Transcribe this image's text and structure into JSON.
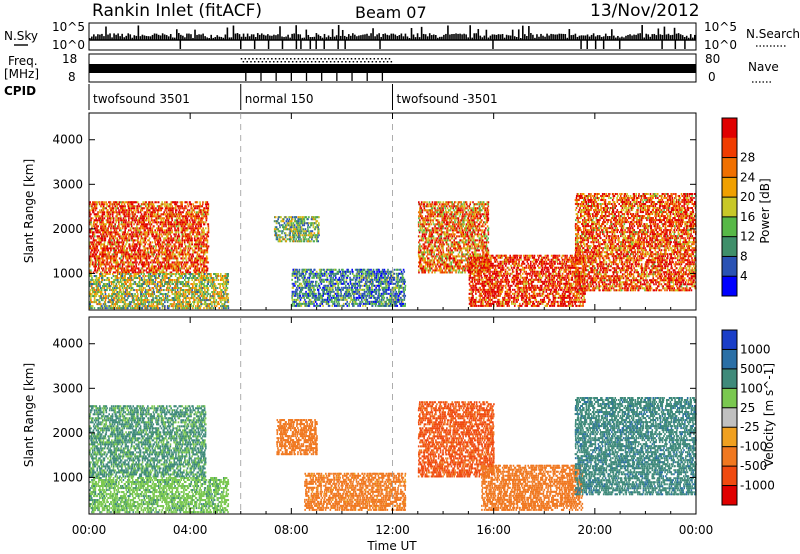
{
  "header": {
    "station": "Rankin Inlet (fitACF)",
    "beam": "Beam 07",
    "date": "13/Nov/2012"
  },
  "noise_panel": {
    "left_label": "N.Sky",
    "right_label": "N.Search",
    "left_top_tick": "10^5",
    "left_bottom_tick": "10^0",
    "right_top_tick": "10^5",
    "right_bottom_tick": "10^0"
  },
  "freq_panel": {
    "left_label_1": "Freq.",
    "left_label_2": "[MHz]",
    "left_tick_top": "18",
    "left_tick_bottom": "8",
    "right_label": "Nave",
    "right_tick_top": "80",
    "right_tick_bottom": "0"
  },
  "cpid": {
    "label": "CPID",
    "segments": [
      {
        "name": "twofsound 3501",
        "start_hour": 0
      },
      {
        "name": "normal 150",
        "start_hour": 6
      },
      {
        "name": "twofsound -3501",
        "start_hour": 12
      }
    ]
  },
  "colors": {
    "power_scale": [
      "#0000ff",
      "#2a52b4",
      "#3f8f6a",
      "#57b847",
      "#c8c828",
      "#f0a000",
      "#f07000",
      "#f03c00",
      "#e00000"
    ],
    "velocity_scale": [
      "#1a3ec8",
      "#2a6fa6",
      "#3f8a7a",
      "#7ac850",
      "#c0c0c0",
      "#f0a020",
      "#f07820",
      "#f04a10",
      "#e00000"
    ]
  },
  "chart_data": [
    {
      "type": "heatmap",
      "name": "power",
      "title": "",
      "ylabel": "Slant Range [km]",
      "xlabel": "",
      "xlim": [
        "00:00",
        "24:00"
      ],
      "ylim": [
        180,
        4600
      ],
      "x_ticks": [
        "00:00",
        "04:00",
        "08:00",
        "12:00",
        "16:00",
        "20:00",
        "00:00"
      ],
      "y_ticks": [
        1000,
        2000,
        3000,
        4000
      ],
      "colorbar": {
        "label": "Power [dB]",
        "ticks": [
          4,
          8,
          12,
          16,
          20,
          24,
          28
        ],
        "range": [
          0,
          30
        ]
      },
      "regions": [
        {
          "t": [
            0.0,
            4.7
          ],
          "r": [
            1000,
            2600
          ],
          "level": 26
        },
        {
          "t": [
            0.0,
            5.5
          ],
          "r": [
            200,
            1000
          ],
          "level": 14
        },
        {
          "t": [
            7.3,
            9.1
          ],
          "r": [
            1700,
            2300
          ],
          "level": 12
        },
        {
          "t": [
            8.0,
            12.5
          ],
          "r": [
            250,
            1100
          ],
          "level": 8
        },
        {
          "t": [
            13.0,
            15.8
          ],
          "r": [
            1000,
            2600
          ],
          "level": 22
        },
        {
          "t": [
            15.0,
            19.6
          ],
          "r": [
            250,
            1400
          ],
          "level": 28
        },
        {
          "t": [
            19.2,
            24.0
          ],
          "r": [
            600,
            2800
          ],
          "level": 25
        }
      ]
    },
    {
      "type": "heatmap",
      "name": "velocity",
      "title": "",
      "ylabel": "Slant Range [km]",
      "xlabel": "Time UT",
      "xlim": [
        "00:00",
        "24:00"
      ],
      "ylim": [
        180,
        4600
      ],
      "x_ticks": [
        "00:00",
        "04:00",
        "08:00",
        "12:00",
        "16:00",
        "20:00",
        "00:00"
      ],
      "y_ticks": [
        1000,
        2000,
        3000,
        4000
      ],
      "colorbar": {
        "label": "Velocity [m s^-1]",
        "ticks": [
          1000,
          500,
          100,
          25,
          -25,
          -100,
          -500,
          -1000
        ]
      },
      "regions": [
        {
          "t": [
            0.0,
            4.6
          ],
          "r": [
            1000,
            2600
          ],
          "level": 120
        },
        {
          "t": [
            0.0,
            5.5
          ],
          "r": [
            200,
            1000
          ],
          "level": 80
        },
        {
          "t": [
            7.4,
            9.0
          ],
          "r": [
            1500,
            2300
          ],
          "level": -250
        },
        {
          "t": [
            8.5,
            12.5
          ],
          "r": [
            250,
            1100
          ],
          "level": -150
        },
        {
          "t": [
            13.0,
            16.0
          ],
          "r": [
            1000,
            2700
          ],
          "level": -600
        },
        {
          "t": [
            15.5,
            19.5
          ],
          "r": [
            250,
            1300
          ],
          "level": -300
        },
        {
          "t": [
            19.2,
            24.0
          ],
          "r": [
            600,
            2800
          ],
          "level": 400
        }
      ]
    }
  ]
}
